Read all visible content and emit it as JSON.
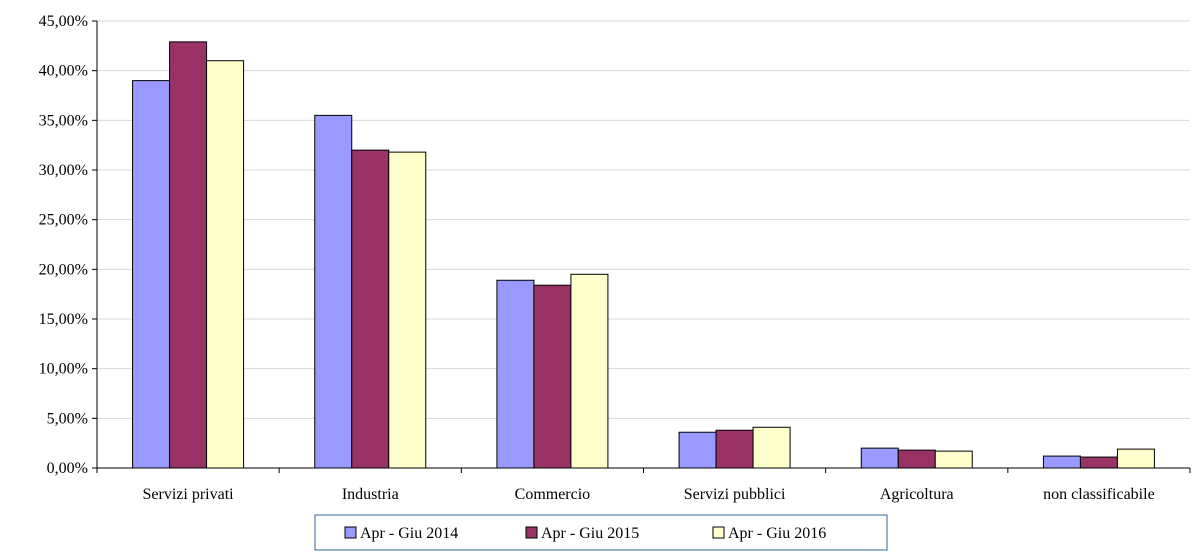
{
  "colors": {
    "series": [
      "#9999ff",
      "#993366",
      "#ffffcc"
    ],
    "grid": "#d9d9d9",
    "axis": "#000000",
    "legend_border": "#336699"
  },
  "chart_data": {
    "type": "bar",
    "title": "",
    "xlabel": "",
    "ylabel": "",
    "ylim": [
      0,
      45
    ],
    "y_ticks": [
      0,
      5,
      10,
      15,
      20,
      25,
      30,
      35,
      40,
      45
    ],
    "y_tick_labels": [
      "0,00%",
      "5,00%",
      "10,00%",
      "15,00%",
      "20,00%",
      "25,00%",
      "30,00%",
      "35,00%",
      "40,00%",
      "45,00%"
    ],
    "grid": "horizontal",
    "legend_position": "bottom",
    "categories": [
      "Servizi privati",
      "Industria",
      "Commercio",
      "Servizi pubblici",
      "Agricoltura",
      "non classificabile"
    ],
    "series": [
      {
        "name": "Apr - Giu 2014",
        "values": [
          39.0,
          35.5,
          18.9,
          3.6,
          2.0,
          1.2
        ]
      },
      {
        "name": "Apr - Giu 2015",
        "values": [
          42.9,
          32.0,
          18.4,
          3.8,
          1.8,
          1.1
        ]
      },
      {
        "name": "Apr - Giu 2016",
        "values": [
          41.0,
          31.8,
          19.5,
          4.1,
          1.7,
          1.9
        ]
      }
    ]
  }
}
